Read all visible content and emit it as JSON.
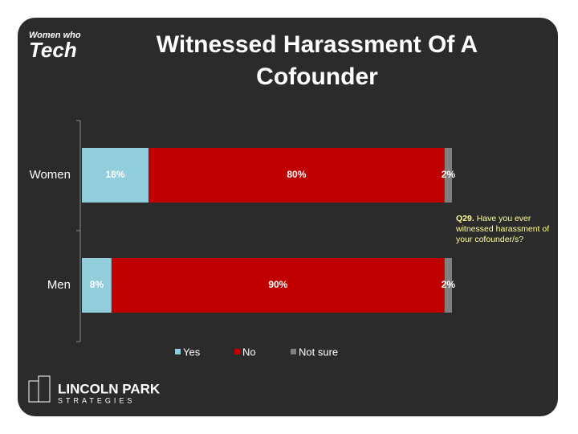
{
  "chart_data": {
    "type": "stacked-barh",
    "title": "Witnessed Harassment Of A Cofounder",
    "categories": [
      "Women",
      "Men"
    ],
    "series": [
      {
        "name": "Yes",
        "color": "#92cddc",
        "values": [
          18,
          8
        ],
        "value_labels": [
          "18%",
          "8%"
        ]
      },
      {
        "name": "No",
        "color": "#c00000",
        "values": [
          80,
          90
        ],
        "value_labels": [
          "80%",
          "90%"
        ]
      },
      {
        "name": "Not sure",
        "color": "#7f7f7f",
        "values": [
          2,
          2
        ],
        "value_labels": [
          "2%",
          "2%"
        ]
      }
    ],
    "xlim": [
      0,
      100
    ],
    "annotation_label": "Q29.",
    "annotation": "Have you ever witnessed harassment of your cofounder/s?",
    "legend": "bottom"
  },
  "logos": {
    "top_line": "Women who",
    "top_main": "Tech",
    "bottom_main": "LINCOLN PARK",
    "bottom_sub": "STRATEGIES"
  }
}
